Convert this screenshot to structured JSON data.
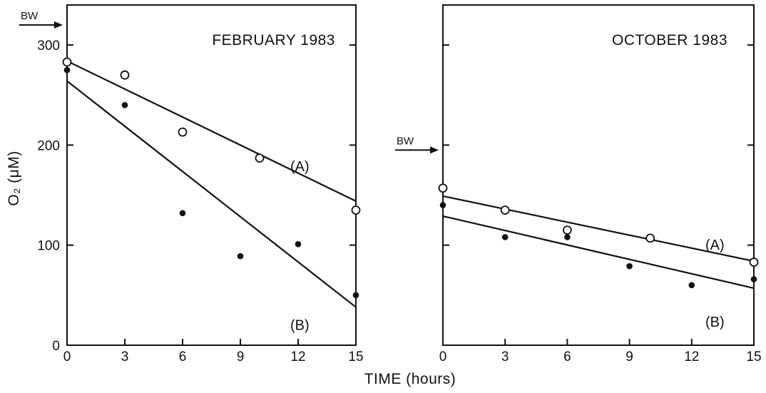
{
  "xlabel": "TIME (hours)",
  "ylabel": "O₂ (μM)",
  "bw_label": "BW",
  "chart_data": [
    {
      "type": "scatter",
      "title": "FEBRUARY 1983",
      "xlabel": "TIME (hours)",
      "ylabel": "O₂ (μM)",
      "xlim": [
        0,
        15
      ],
      "ylim": [
        0,
        340
      ],
      "xticks": [
        0,
        3,
        6,
        9,
        12,
        15
      ],
      "yticks": [
        0,
        100,
        200,
        300
      ],
      "ytick_labels": [
        "0",
        "100",
        "200",
        "300"
      ],
      "bw_value": 320,
      "series": [
        {
          "name": "(A)",
          "marker": "open",
          "x": [
            0,
            3,
            6,
            10,
            15
          ],
          "y": [
            283,
            270,
            213,
            187,
            135
          ],
          "fit": [
            [
              0,
              284
            ],
            [
              15,
              144
            ]
          ]
        },
        {
          "name": "(B)",
          "marker": "filled",
          "x": [
            0,
            3,
            6,
            9,
            12,
            15
          ],
          "y": [
            275,
            240,
            132,
            89,
            101,
            50
          ],
          "fit": [
            [
              0,
              264
            ],
            [
              15,
              38
            ]
          ]
        }
      ]
    },
    {
      "type": "scatter",
      "title": "OCTOBER 1983",
      "xlabel": "TIME (hours)",
      "ylabel": "O₂ (μM)",
      "xlim": [
        0,
        15
      ],
      "ylim": [
        0,
        340
      ],
      "xticks": [
        0,
        3,
        6,
        9,
        12,
        15
      ],
      "yticks": [
        0,
        100,
        200,
        300
      ],
      "ytick_labels": [],
      "bw_value": 195,
      "series": [
        {
          "name": "(A)",
          "marker": "open",
          "x": [
            0,
            3,
            6,
            10,
            15
          ],
          "y": [
            157,
            135,
            115,
            107,
            83
          ],
          "fit": [
            [
              0,
              149
            ],
            [
              15,
              84
            ]
          ]
        },
        {
          "name": "(B)",
          "marker": "filled",
          "x": [
            0,
            3,
            6,
            9,
            12,
            15
          ],
          "y": [
            140,
            108,
            108,
            79,
            60,
            66
          ],
          "fit": [
            [
              0,
              129
            ],
            [
              15,
              57
            ]
          ]
        }
      ]
    }
  ]
}
